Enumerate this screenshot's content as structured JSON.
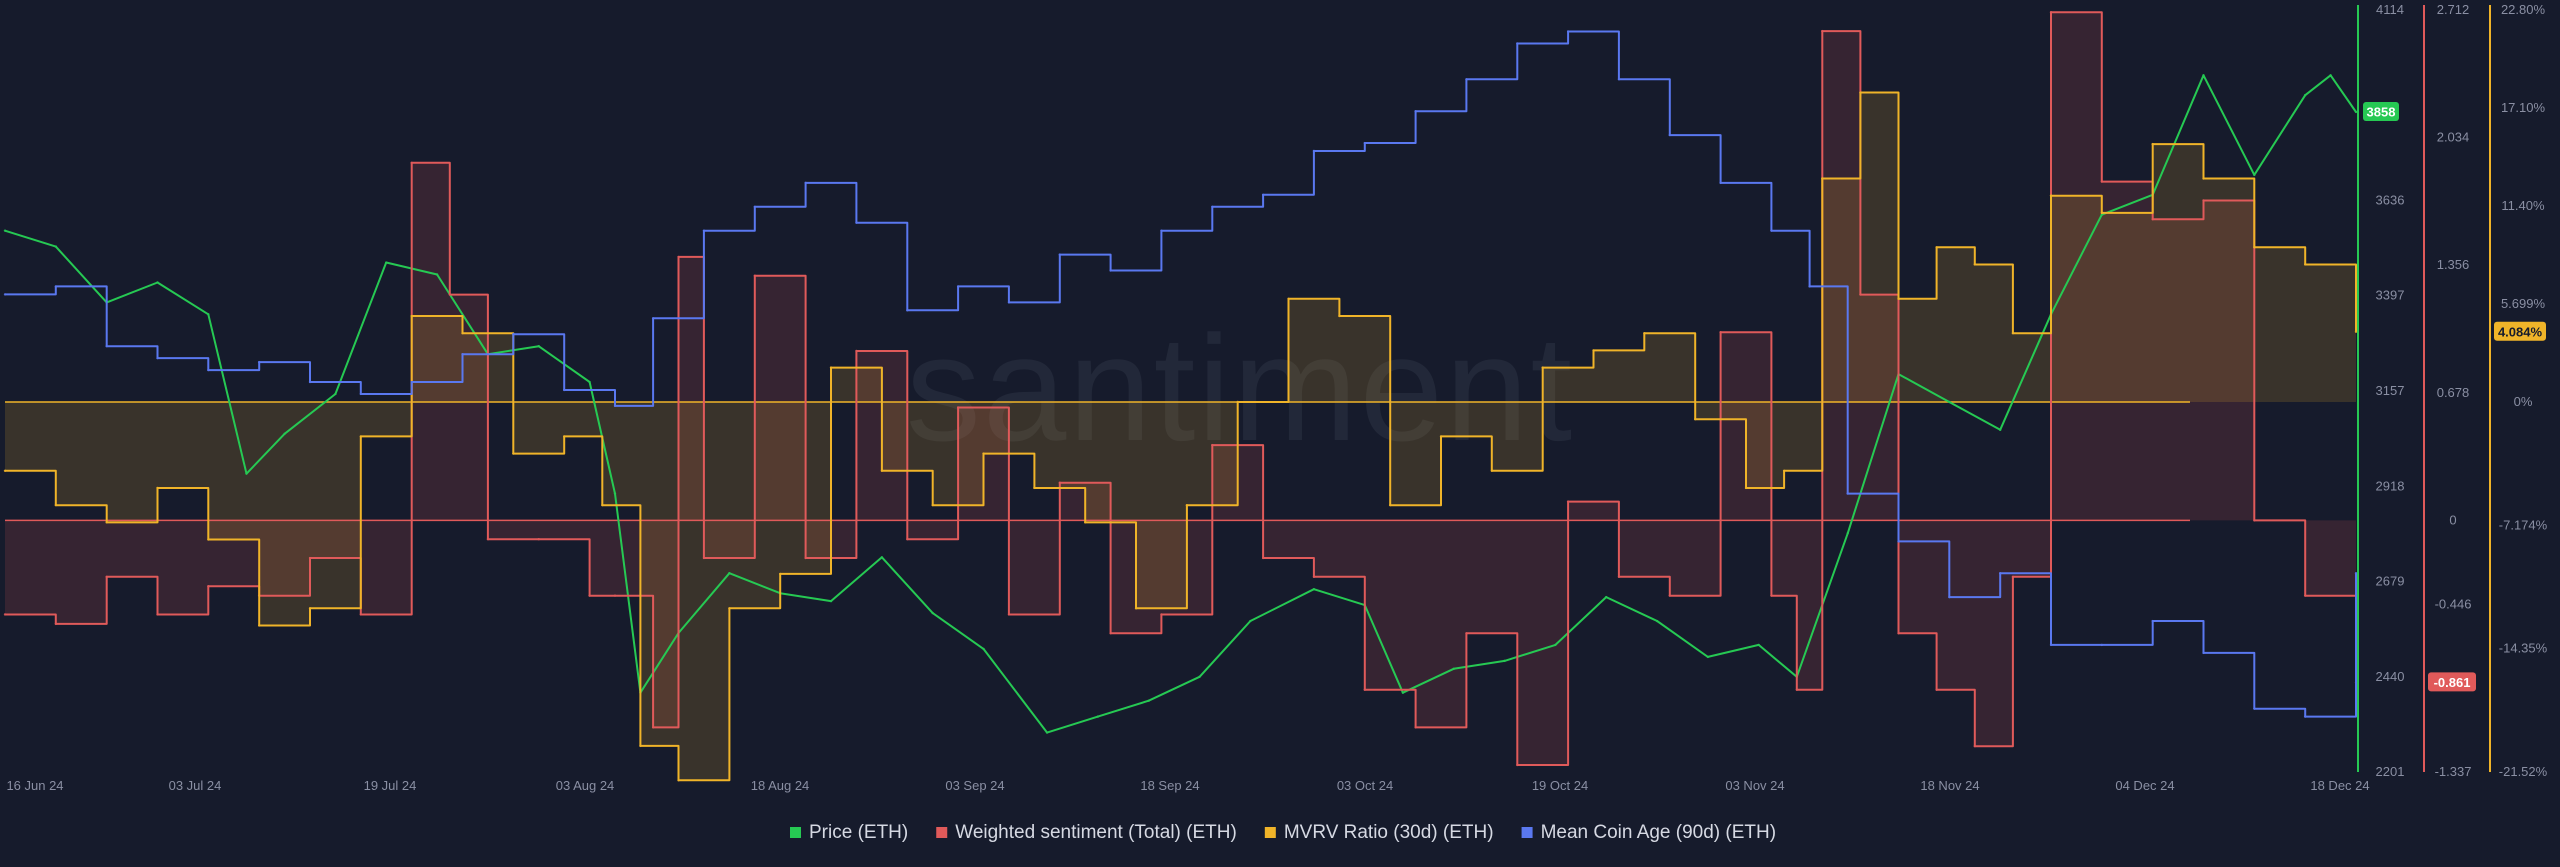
{
  "watermark": "santiment",
  "axes": {
    "price": {
      "color": "#26c953",
      "ticks": [
        "4114",
        "3636",
        "3397",
        "3157",
        "2918",
        "2679",
        "2440",
        "2201"
      ],
      "badge": "3858",
      "range": [
        2201,
        4114
      ]
    },
    "sentiment": {
      "color": "#e05a5a",
      "ticks": [
        "2.712",
        "2.034",
        "1.356",
        "0.678",
        "0",
        "-0.446",
        "-1.337"
      ],
      "badge": "-0.861",
      "range": [
        -1.337,
        2.712
      ]
    },
    "mvrv": {
      "color": "#f0b429",
      "ticks": [
        "22.80%",
        "17.10%",
        "11.40%",
        "5.699%",
        "0%",
        "-7.174%",
        "-14.35%",
        "-21.52%"
      ],
      "badge": "4.084%",
      "range": [
        -21.52,
        22.8
      ]
    }
  },
  "x_ticks": [
    "16 Jun 24",
    "03 Jul 24",
    "19 Jul 24",
    "03 Aug 24",
    "18 Aug 24",
    "03 Sep 24",
    "18 Sep 24",
    "03 Oct 24",
    "19 Oct 24",
    "03 Nov 24",
    "18 Nov 24",
    "04 Dec 24",
    "18 Dec 24"
  ],
  "legend": [
    {
      "label": "Price (ETH)",
      "color": "#26c953"
    },
    {
      "label": "Weighted sentiment (Total) (ETH)",
      "color": "#e05a5a"
    },
    {
      "label": "MVRV Ratio (30d) (ETH)",
      "color": "#f0b429"
    },
    {
      "label": "Mean Coin Age (90d) (ETH)",
      "color": "#5a78f0"
    }
  ],
  "chart_data": {
    "type": "line",
    "x_range": [
      "2024-06-16",
      "2024-12-18"
    ],
    "series": [
      {
        "name": "Price (ETH)",
        "color": "#26c953",
        "axis": "price",
        "x": [
          "2024-06-16",
          "2024-06-20",
          "2024-06-24",
          "2024-06-28",
          "2024-07-02",
          "2024-07-05",
          "2024-07-08",
          "2024-07-12",
          "2024-07-16",
          "2024-07-20",
          "2024-07-24",
          "2024-07-28",
          "2024-08-01",
          "2024-08-03",
          "2024-08-05",
          "2024-08-08",
          "2024-08-12",
          "2024-08-16",
          "2024-08-20",
          "2024-08-24",
          "2024-08-28",
          "2024-09-01",
          "2024-09-06",
          "2024-09-10",
          "2024-09-14",
          "2024-09-18",
          "2024-09-22",
          "2024-09-27",
          "2024-10-01",
          "2024-10-04",
          "2024-10-08",
          "2024-10-12",
          "2024-10-16",
          "2024-10-20",
          "2024-10-24",
          "2024-10-28",
          "2024-11-01",
          "2024-11-04",
          "2024-11-08",
          "2024-11-12",
          "2024-11-16",
          "2024-11-20",
          "2024-11-24",
          "2024-11-28",
          "2024-12-02",
          "2024-12-06",
          "2024-12-10",
          "2024-12-14",
          "2024-12-16",
          "2024-12-18"
        ],
        "values": [
          3560,
          3520,
          3380,
          3430,
          3350,
          2950,
          3050,
          3150,
          3480,
          3450,
          3250,
          3270,
          3180,
          2900,
          2400,
          2550,
          2700,
          2650,
          2630,
          2740,
          2600,
          2510,
          2300,
          2340,
          2380,
          2440,
          2580,
          2660,
          2620,
          2400,
          2460,
          2480,
          2520,
          2640,
          2580,
          2490,
          2520,
          2440,
          2800,
          3200,
          3130,
          3060,
          3350,
          3600,
          3650,
          3950,
          3700,
          3900,
          3950,
          3858
        ]
      },
      {
        "name": "Weighted sentiment (Total) (ETH)",
        "color": "#e05a5a",
        "axis": "sentiment",
        "x": [
          "2024-06-16",
          "2024-06-20",
          "2024-06-24",
          "2024-06-28",
          "2024-07-02",
          "2024-07-06",
          "2024-07-10",
          "2024-07-14",
          "2024-07-18",
          "2024-07-21",
          "2024-07-24",
          "2024-07-28",
          "2024-08-01",
          "2024-08-03",
          "2024-08-06",
          "2024-08-08",
          "2024-08-10",
          "2024-08-14",
          "2024-08-18",
          "2024-08-22",
          "2024-08-26",
          "2024-08-30",
          "2024-09-03",
          "2024-09-07",
          "2024-09-11",
          "2024-09-15",
          "2024-09-19",
          "2024-09-23",
          "2024-09-27",
          "2024-10-01",
          "2024-10-05",
          "2024-10-09",
          "2024-10-13",
          "2024-10-17",
          "2024-10-21",
          "2024-10-25",
          "2024-10-29",
          "2024-11-02",
          "2024-11-04",
          "2024-11-06",
          "2024-11-09",
          "2024-11-12",
          "2024-11-15",
          "2024-11-18",
          "2024-11-21",
          "2024-11-24",
          "2024-11-28",
          "2024-12-02",
          "2024-12-06",
          "2024-12-10",
          "2024-12-14",
          "2024-12-18"
        ],
        "values": [
          -0.5,
          -0.55,
          -0.3,
          -0.5,
          -0.35,
          -0.4,
          -0.2,
          -0.5,
          1.9,
          1.2,
          -0.1,
          -0.1,
          -0.4,
          -0.4,
          -1.1,
          1.4,
          -0.2,
          1.3,
          -0.2,
          0.9,
          -0.1,
          0.6,
          -0.5,
          0.2,
          -0.6,
          -0.5,
          0.4,
          -0.2,
          -0.3,
          -0.9,
          -1.1,
          -0.6,
          -1.3,
          0.1,
          -0.3,
          -0.4,
          1.0,
          -0.4,
          -0.9,
          2.6,
          1.2,
          -0.6,
          -0.9,
          -1.2,
          -0.3,
          2.7,
          1.8,
          1.6,
          1.7,
          0.0,
          -0.4,
          -0.861
        ]
      },
      {
        "name": "MVRV Ratio (30d) (ETH)",
        "color": "#f0b429",
        "axis": "mvrv",
        "x": [
          "2024-06-16",
          "2024-06-20",
          "2024-06-24",
          "2024-06-28",
          "2024-07-02",
          "2024-07-06",
          "2024-07-10",
          "2024-07-14",
          "2024-07-18",
          "2024-07-22",
          "2024-07-26",
          "2024-07-30",
          "2024-08-02",
          "2024-08-05",
          "2024-08-08",
          "2024-08-12",
          "2024-08-16",
          "2024-08-20",
          "2024-08-24",
          "2024-08-28",
          "2024-09-01",
          "2024-09-05",
          "2024-09-09",
          "2024-09-13",
          "2024-09-17",
          "2024-09-21",
          "2024-09-25",
          "2024-09-29",
          "2024-10-03",
          "2024-10-07",
          "2024-10-11",
          "2024-10-15",
          "2024-10-19",
          "2024-10-23",
          "2024-10-27",
          "2024-10-31",
          "2024-11-03",
          "2024-11-06",
          "2024-11-09",
          "2024-11-12",
          "2024-11-15",
          "2024-11-18",
          "2024-11-21",
          "2024-11-24",
          "2024-11-28",
          "2024-12-02",
          "2024-12-06",
          "2024-12-10",
          "2024-12-14",
          "2024-12-18"
        ],
        "values": [
          -4,
          -6,
          -7,
          -5,
          -8,
          -13,
          -12,
          -2,
          5,
          4,
          -3,
          -2,
          -6,
          -20,
          -22,
          -12,
          -10,
          2,
          -4,
          -6,
          -3,
          -5,
          -7,
          -12,
          -6,
          0,
          6,
          5,
          -6,
          -2,
          -4,
          2,
          3,
          4,
          -1,
          -5,
          -4,
          13,
          18,
          6,
          9,
          8,
          4,
          12,
          11,
          15,
          13,
          9,
          8,
          4.084
        ]
      },
      {
        "name": "Mean Coin Age (90d) (ETH)",
        "color": "#5a78f0",
        "axis": "price",
        "x": [
          "2024-06-16",
          "2024-06-20",
          "2024-06-24",
          "2024-06-28",
          "2024-07-02",
          "2024-07-06",
          "2024-07-10",
          "2024-07-14",
          "2024-07-18",
          "2024-07-22",
          "2024-07-26",
          "2024-07-30",
          "2024-08-03",
          "2024-08-06",
          "2024-08-10",
          "2024-08-14",
          "2024-08-18",
          "2024-08-22",
          "2024-08-26",
          "2024-08-30",
          "2024-09-03",
          "2024-09-07",
          "2024-09-11",
          "2024-09-15",
          "2024-09-19",
          "2024-09-23",
          "2024-09-27",
          "2024-10-01",
          "2024-10-05",
          "2024-10-09",
          "2024-10-13",
          "2024-10-17",
          "2024-10-21",
          "2024-10-25",
          "2024-10-29",
          "2024-11-02",
          "2024-11-05",
          "2024-11-08",
          "2024-11-12",
          "2024-11-16",
          "2024-11-20",
          "2024-11-24",
          "2024-11-28",
          "2024-12-02",
          "2024-12-06",
          "2024-12-10",
          "2024-12-14",
          "2024-12-18"
        ],
        "values": [
          3400,
          3420,
          3270,
          3240,
          3210,
          3230,
          3180,
          3150,
          3180,
          3250,
          3300,
          3160,
          3120,
          3340,
          3560,
          3620,
          3680,
          3580,
          3360,
          3420,
          3380,
          3500,
          3460,
          3560,
          3620,
          3650,
          3760,
          3780,
          3860,
          3940,
          4030,
          4060,
          3940,
          3800,
          3680,
          3560,
          3420,
          2900,
          2780,
          2640,
          2700,
          2520,
          2520,
          2580,
          2500,
          2360,
          2340,
          2700
        ]
      }
    ]
  }
}
